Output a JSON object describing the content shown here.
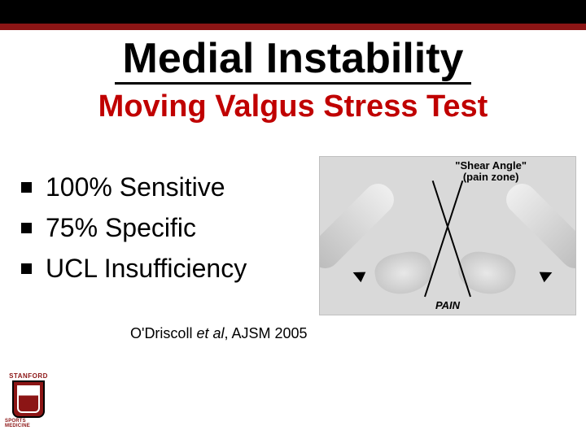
{
  "colors": {
    "topbar": "#000000",
    "stripe": "#8c1515",
    "subtitle": "#c00000",
    "background": "#ffffff",
    "text": "#000000"
  },
  "title": "Medial Instability",
  "subtitle": "Moving Valgus Stress Test",
  "bullets": [
    "100% Sensitive",
    "75% Specific",
    "UCL Insufficiency"
  ],
  "citation": {
    "author": "O'Driscoll",
    "et_al": "et al",
    "rest": ", AJSM 2005"
  },
  "figure": {
    "type": "diagram",
    "top_label_line1": "\"Shear Angle\"",
    "top_label_line2": "(pain zone)",
    "bottom_label": "PAIN",
    "arc_color": "#000000",
    "guide_line_color": "#000000",
    "background_gray": "#d9d9d9"
  },
  "logo": {
    "top_text": "STANFORD",
    "bottom_text": "SPORTS MEDICINE",
    "shield_color": "#8c1515"
  }
}
